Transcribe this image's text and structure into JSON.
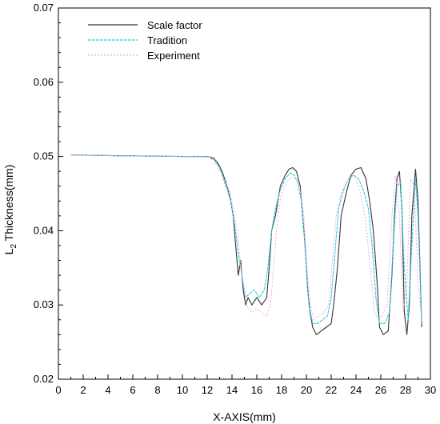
{
  "chart_data": {
    "type": "line",
    "title": "",
    "xlabel": "X-AXIS(mm)",
    "ylabel_main": "L",
    "ylabel_sub": "2",
    "ylabel_rest": " Thickness(mm)",
    "xlim": [
      0,
      30
    ],
    "ylim": [
      0.02,
      0.07
    ],
    "xticks": [
      0,
      2,
      4,
      6,
      8,
      10,
      12,
      14,
      16,
      18,
      20,
      22,
      24,
      26,
      28,
      30
    ],
    "yticks": [
      0.02,
      0.03,
      0.04,
      0.05,
      0.06,
      0.07
    ],
    "ytick_labels": [
      "0.02",
      "0.03",
      "0.04",
      "0.05",
      "0.06",
      "0.07"
    ],
    "grid": false,
    "legend_position": "top-left",
    "series": [
      {
        "name": "Scale factor",
        "color": "#333333",
        "x": [
          1,
          5,
          10,
          12,
          12.5,
          12.9,
          13.2,
          13.5,
          13.7,
          13.9,
          14.1,
          14.3,
          14.5,
          14.7,
          14.9,
          15.1,
          15.3,
          15.6,
          16,
          16.4,
          16.8,
          17.0,
          17.2,
          17.5,
          17.9,
          18.3,
          18.6,
          18.9,
          19.2,
          19.5,
          19.7,
          19.9,
          20.1,
          20.3,
          20.5,
          20.8,
          21.2,
          21.6,
          22.0,
          22.2,
          22.5,
          22.8,
          23.2,
          23.6,
          24.0,
          24.4,
          24.8,
          25.1,
          25.4,
          25.7,
          25.9,
          26.2,
          26.6,
          26.9,
          27.1,
          27.3,
          27.5,
          27.7,
          27.9,
          28.1,
          28.3,
          28.5,
          28.8,
          29.0,
          29.3
        ],
        "y": [
          0.0502,
          0.0501,
          0.05,
          0.05,
          0.0498,
          0.049,
          0.048,
          0.0465,
          0.0455,
          0.044,
          0.042,
          0.038,
          0.034,
          0.036,
          0.032,
          0.03,
          0.031,
          0.03,
          0.031,
          0.03,
          0.031,
          0.035,
          0.04,
          0.042,
          0.046,
          0.0475,
          0.0483,
          0.0485,
          0.048,
          0.046,
          0.042,
          0.038,
          0.032,
          0.029,
          0.027,
          0.026,
          0.0265,
          0.027,
          0.0275,
          0.03,
          0.035,
          0.042,
          0.045,
          0.0475,
          0.0483,
          0.0485,
          0.047,
          0.044,
          0.04,
          0.033,
          0.027,
          0.026,
          0.0265,
          0.034,
          0.042,
          0.047,
          0.048,
          0.043,
          0.029,
          0.026,
          0.03,
          0.042,
          0.0483,
          0.044,
          0.027
        ]
      },
      {
        "name": "Tradition",
        "color": "#33ccdd",
        "x": [
          1,
          5,
          10,
          12,
          12.6,
          13.0,
          13.3,
          13.6,
          13.9,
          14.2,
          14.5,
          14.8,
          15.1,
          15.4,
          15.8,
          16.2,
          16.6,
          16.9,
          17.2,
          17.5,
          17.9,
          18.3,
          18.7,
          19.0,
          19.3,
          19.6,
          19.8,
          20.0,
          20.2,
          20.5,
          20.9,
          21.3,
          21.7,
          22.0,
          22.3,
          22.6,
          23.0,
          23.4,
          23.8,
          24.2,
          24.6,
          25.0,
          25.3,
          25.6,
          25.9,
          26.3,
          26.7,
          27.0,
          27.3,
          27.6,
          27.9,
          28.2,
          28.5,
          28.8,
          29.0,
          29.3
        ],
        "y": [
          0.0502,
          0.0501,
          0.05,
          0.05,
          0.0495,
          0.0485,
          0.047,
          0.0455,
          0.044,
          0.041,
          0.037,
          0.034,
          0.031,
          0.0315,
          0.032,
          0.031,
          0.032,
          0.035,
          0.04,
          0.043,
          0.0455,
          0.047,
          0.0478,
          0.0475,
          0.0465,
          0.044,
          0.04,
          0.035,
          0.03,
          0.0275,
          0.0275,
          0.028,
          0.0285,
          0.031,
          0.037,
          0.043,
          0.0455,
          0.047,
          0.0475,
          0.047,
          0.0455,
          0.043,
          0.038,
          0.031,
          0.0275,
          0.0275,
          0.029,
          0.038,
          0.046,
          0.0465,
          0.035,
          0.028,
          0.038,
          0.047,
          0.042,
          0.0275
        ]
      },
      {
        "name": "Experiment",
        "color": "#f2a6dc",
        "x": [
          1,
          5,
          10,
          12.2,
          12.8,
          13.2,
          13.6,
          14.0,
          14.4,
          14.8,
          15.2,
          15.6,
          16.0,
          16.4,
          16.8,
          17.1,
          17.4,
          17.7,
          18.0,
          18.4,
          18.8,
          19.2,
          19.5,
          19.8,
          20.0,
          20.3,
          20.6,
          21.0,
          21.4,
          21.8,
          22.1,
          22.4,
          22.8,
          23.2,
          23.6,
          24.0,
          24.4,
          24.8,
          25.2,
          25.5,
          25.8,
          26.1,
          26.5,
          26.9,
          27.2,
          27.5,
          27.8,
          28.1,
          28.4,
          28.7,
          29.0,
          29.3
        ],
        "y": [
          0.0502,
          0.0501,
          0.05,
          0.0499,
          0.0488,
          0.0475,
          0.046,
          0.044,
          0.04,
          0.034,
          0.03,
          0.029,
          0.0295,
          0.029,
          0.0285,
          0.03,
          0.036,
          0.042,
          0.045,
          0.0465,
          0.0472,
          0.047,
          0.0455,
          0.042,
          0.036,
          0.03,
          0.028,
          0.0285,
          0.029,
          0.03,
          0.036,
          0.042,
          0.045,
          0.0465,
          0.0472,
          0.047,
          0.045,
          0.041,
          0.034,
          0.029,
          0.028,
          0.0285,
          0.03,
          0.042,
          0.0475,
          0.042,
          0.029,
          0.033,
          0.047,
          0.046,
          0.033,
          0.028
        ]
      }
    ]
  }
}
